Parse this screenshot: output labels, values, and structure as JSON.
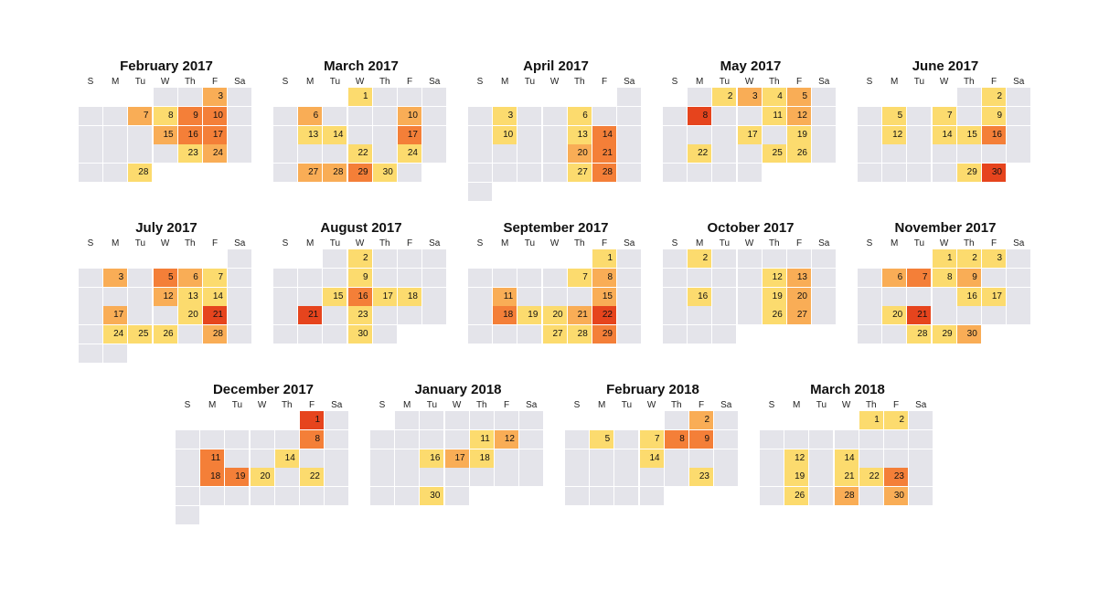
{
  "chart_data": {
    "type": "heatmap",
    "title": "",
    "week_start": "Sunday",
    "weekday_labels": [
      "S",
      "M",
      "Tu",
      "W",
      "Th",
      "F",
      "Sa"
    ],
    "empty_color": "#e4e4ea",
    "color_scale": {
      "levels": [
        1,
        2,
        3,
        4
      ],
      "colors": [
        "#fcdb6e",
        "#f9ad56",
        "#f47f38",
        "#e6441d"
      ]
    },
    "months": [
      {
        "title": "February 2017",
        "year": 2017,
        "month": 2,
        "days": 28,
        "first_weekday": 3,
        "values": {
          "3": 2,
          "7": 2,
          "8": 1,
          "9": 3,
          "10": 3,
          "15": 2,
          "16": 3,
          "17": 3,
          "23": 1,
          "24": 2,
          "28": 1
        }
      },
      {
        "title": "March 2017",
        "year": 2017,
        "month": 3,
        "days": 31,
        "first_weekday": 3,
        "values": {
          "1": 1,
          "6": 2,
          "10": 2,
          "13": 1,
          "14": 1,
          "17": 3,
          "22": 1,
          "24": 1,
          "27": 2,
          "28": 2,
          "29": 3,
          "30": 1
        }
      },
      {
        "title": "April 2017",
        "year": 2017,
        "month": 4,
        "days": 30,
        "first_weekday": 6,
        "values": {
          "3": 1,
          "6": 1,
          "10": 1,
          "13": 1,
          "14": 3,
          "20": 2,
          "21": 3,
          "27": 1,
          "28": 3
        }
      },
      {
        "title": "May 2017",
        "year": 2017,
        "month": 5,
        "days": 31,
        "first_weekday": 1,
        "values": {
          "2": 1,
          "3": 2,
          "4": 1,
          "5": 2,
          "8": 4,
          "11": 1,
          "12": 2,
          "17": 1,
          "19": 1,
          "22": 1,
          "25": 1,
          "26": 1
        }
      },
      {
        "title": "June 2017",
        "year": 2017,
        "month": 6,
        "days": 30,
        "first_weekday": 4,
        "values": {
          "2": 1,
          "5": 1,
          "7": 1,
          "9": 1,
          "12": 1,
          "14": 1,
          "15": 1,
          "16": 3,
          "29": 1,
          "30": 4
        }
      },
      {
        "title": "July 2017",
        "year": 2017,
        "month": 7,
        "days": 31,
        "first_weekday": 6,
        "values": {
          "3": 2,
          "5": 3,
          "6": 2,
          "7": 1,
          "12": 2,
          "13": 1,
          "14": 1,
          "17": 2,
          "20": 1,
          "21": 4,
          "24": 1,
          "25": 1,
          "26": 1,
          "28": 2
        }
      },
      {
        "title": "August 2017",
        "year": 2017,
        "month": 8,
        "days": 31,
        "first_weekday": 2,
        "values": {
          "2": 1,
          "9": 1,
          "15": 1,
          "16": 3,
          "17": 1,
          "18": 1,
          "21": 4,
          "23": 1,
          "30": 1
        }
      },
      {
        "title": "September 2017",
        "year": 2017,
        "month": 9,
        "days": 30,
        "first_weekday": 5,
        "values": {
          "1": 1,
          "7": 1,
          "8": 2,
          "11": 2,
          "15": 2,
          "18": 3,
          "19": 1,
          "20": 1,
          "21": 2,
          "22": 4,
          "27": 1,
          "28": 1,
          "29": 3
        }
      },
      {
        "title": "October 2017",
        "year": 2017,
        "month": 10,
        "days": 31,
        "first_weekday": 0,
        "values": {
          "2": 1,
          "12": 1,
          "13": 2,
          "16": 1,
          "19": 1,
          "20": 2,
          "26": 1,
          "27": 2
        }
      },
      {
        "title": "November 2017",
        "year": 2017,
        "month": 11,
        "days": 30,
        "first_weekday": 3,
        "values": {
          "1": 1,
          "2": 1,
          "3": 1,
          "6": 2,
          "7": 3,
          "8": 1,
          "9": 2,
          "16": 1,
          "17": 1,
          "20": 1,
          "21": 4,
          "28": 1,
          "29": 1,
          "30": 2
        }
      },
      {
        "title": "December 2017",
        "year": 2017,
        "month": 12,
        "days": 31,
        "first_weekday": 5,
        "values": {
          "1": 4,
          "8": 3,
          "11": 3,
          "14": 1,
          "18": 3,
          "19": 3,
          "20": 1,
          "22": 1
        }
      },
      {
        "title": "January 2018",
        "year": 2018,
        "month": 1,
        "days": 31,
        "first_weekday": 1,
        "values": {
          "11": 1,
          "12": 2,
          "16": 1,
          "17": 2,
          "18": 1,
          "30": 1
        }
      },
      {
        "title": "February 2018",
        "year": 2018,
        "month": 2,
        "days": 28,
        "first_weekday": 4,
        "values": {
          "2": 2,
          "5": 1,
          "7": 1,
          "8": 3,
          "9": 3,
          "14": 1,
          "23": 1
        }
      },
      {
        "title": "March 2018",
        "year": 2018,
        "month": 3,
        "days": 31,
        "first_weekday": 4,
        "values": {
          "1": 1,
          "2": 1,
          "12": 1,
          "14": 1,
          "19": 1,
          "21": 1,
          "22": 1,
          "23": 3,
          "26": 1,
          "28": 2,
          "30": 2
        }
      }
    ]
  }
}
